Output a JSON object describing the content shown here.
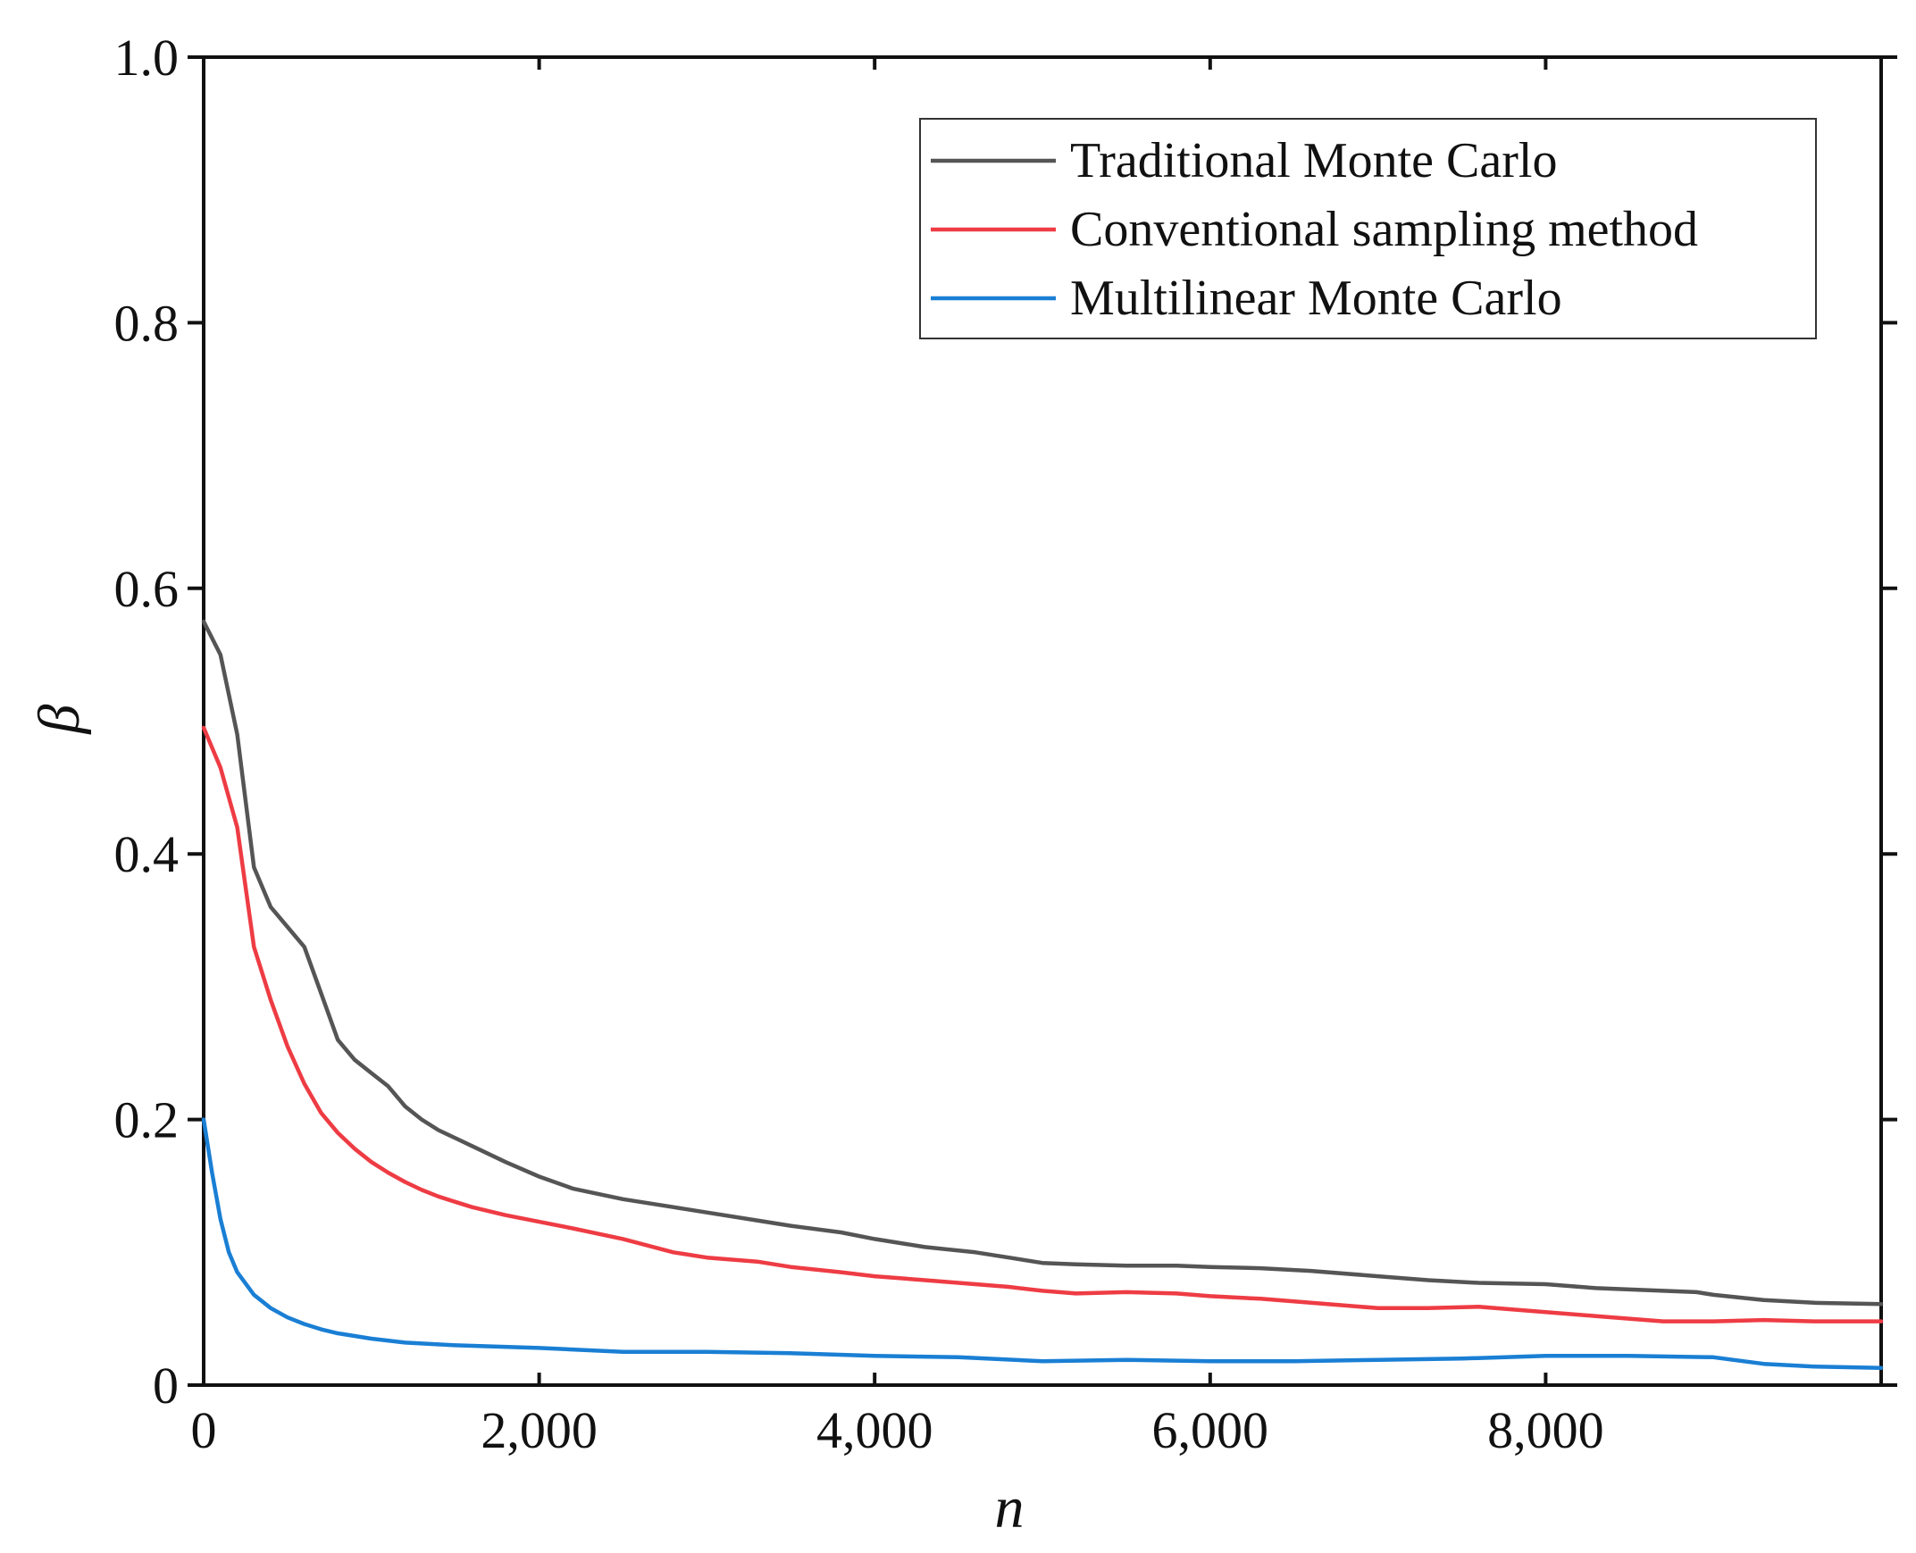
{
  "chart_data": {
    "type": "line",
    "title": "",
    "xlabel": "n",
    "ylabel": "β",
    "xlim": [
      0,
      10000
    ],
    "ylim": [
      0,
      1.0
    ],
    "xticks": [
      0,
      2000,
      4000,
      6000,
      8000
    ],
    "xtick_labels": [
      "0",
      "2,000",
      "4,000",
      "6,000",
      "8,000"
    ],
    "yticks": [
      0,
      0.2,
      0.4,
      0.6,
      0.8,
      1.0
    ],
    "ytick_labels": [
      "0",
      "0.2",
      "0.4",
      "0.6",
      "0.8",
      "1.0"
    ],
    "grid": false,
    "legend_position": "top-right",
    "series": [
      {
        "name": "Traditional Monte Carlo",
        "color": "#555555",
        "x": [
          0,
          100,
          200,
          300,
          400,
          500,
          600,
          700,
          800,
          900,
          1000,
          1100,
          1200,
          1300,
          1400,
          1500,
          1600,
          1800,
          2000,
          2200,
          2500,
          2800,
          3000,
          3300,
          3500,
          3800,
          4000,
          4300,
          4600,
          4800,
          5000,
          5200,
          5500,
          5800,
          6000,
          6300,
          6600,
          7000,
          7300,
          7600,
          8000,
          8300,
          8700,
          8900,
          9000,
          9300,
          9600,
          10000
        ],
        "values": [
          0.575,
          0.55,
          0.49,
          0.39,
          0.36,
          0.345,
          0.33,
          0.295,
          0.26,
          0.245,
          0.235,
          0.225,
          0.21,
          0.2,
          0.192,
          0.186,
          0.18,
          0.168,
          0.157,
          0.148,
          0.14,
          0.134,
          0.13,
          0.124,
          0.12,
          0.115,
          0.11,
          0.104,
          0.1,
          0.096,
          0.092,
          0.091,
          0.09,
          0.09,
          0.089,
          0.088,
          0.086,
          0.082,
          0.079,
          0.077,
          0.076,
          0.073,
          0.071,
          0.07,
          0.068,
          0.064,
          0.062,
          0.061
        ]
      },
      {
        "name": "Conventional sampling method",
        "color": "#ee3c44",
        "x": [
          0,
          100,
          200,
          300,
          400,
          500,
          600,
          700,
          800,
          900,
          1000,
          1100,
          1200,
          1300,
          1400,
          1500,
          1600,
          1800,
          2000,
          2200,
          2500,
          2800,
          3000,
          3300,
          3500,
          3800,
          4000,
          4300,
          4600,
          4800,
          5000,
          5200,
          5500,
          5800,
          6000,
          6300,
          6600,
          7000,
          7300,
          7600,
          8000,
          8300,
          8700,
          9000,
          9300,
          9600,
          10000
        ],
        "values": [
          0.495,
          0.465,
          0.42,
          0.33,
          0.29,
          0.255,
          0.227,
          0.205,
          0.19,
          0.178,
          0.168,
          0.16,
          0.153,
          0.147,
          0.142,
          0.138,
          0.134,
          0.128,
          0.123,
          0.118,
          0.11,
          0.1,
          0.096,
          0.093,
          0.089,
          0.085,
          0.082,
          0.079,
          0.076,
          0.074,
          0.071,
          0.069,
          0.07,
          0.069,
          0.067,
          0.065,
          0.062,
          0.058,
          0.058,
          0.059,
          0.055,
          0.052,
          0.048,
          0.048,
          0.049,
          0.048,
          0.048
        ]
      },
      {
        "name": "Multilinear Monte Carlo",
        "color": "#1a7fd4",
        "x": [
          0,
          50,
          100,
          150,
          200,
          300,
          400,
          500,
          600,
          700,
          800,
          1000,
          1200,
          1500,
          2000,
          2500,
          3000,
          3500,
          4000,
          4500,
          5000,
          5500,
          6000,
          6500,
          7000,
          7500,
          8000,
          8500,
          9000,
          9300,
          9600,
          10000
        ],
        "values": [
          0.2,
          0.16,
          0.125,
          0.1,
          0.085,
          0.068,
          0.058,
          0.051,
          0.046,
          0.042,
          0.039,
          0.035,
          0.032,
          0.03,
          0.028,
          0.025,
          0.025,
          0.024,
          0.022,
          0.021,
          0.018,
          0.019,
          0.018,
          0.018,
          0.019,
          0.02,
          0.022,
          0.022,
          0.021,
          0.016,
          0.014,
          0.013
        ]
      }
    ]
  }
}
